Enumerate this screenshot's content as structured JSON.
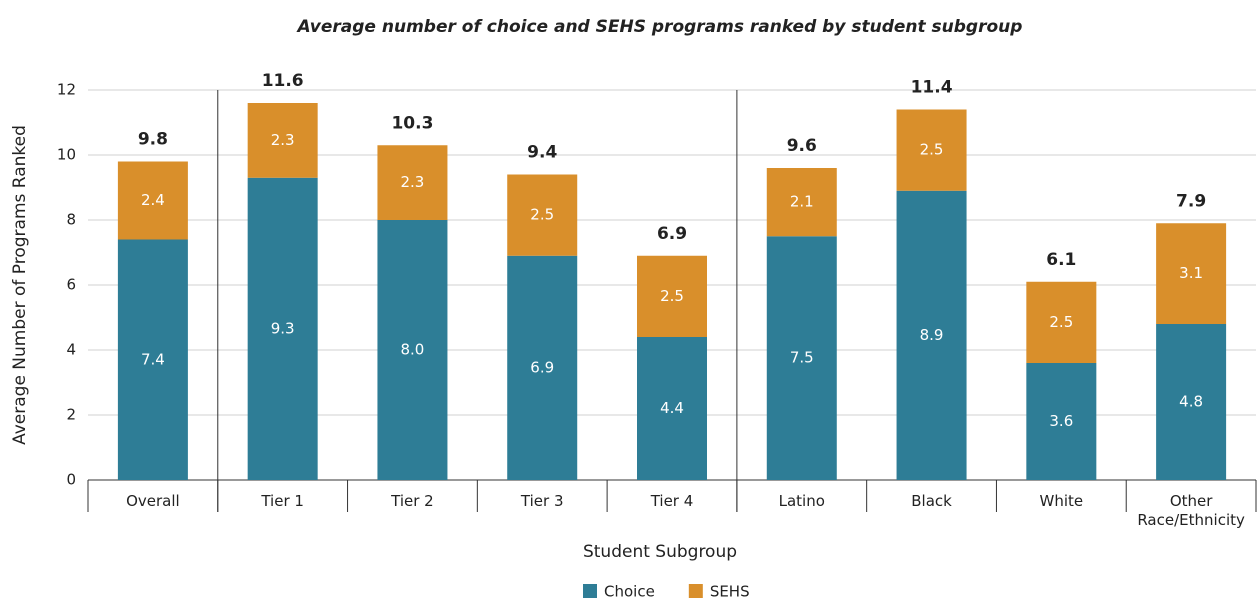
{
  "chart_data": {
    "type": "stacked_bar",
    "title": "Average number of choice and SEHS programs ranked by student subgroup",
    "x_label": "Student Subgroup",
    "y_label": "Average Number of Programs Ranked",
    "categories": [
      "Overall",
      "Tier 1",
      "Tier 2",
      "Tier 3",
      "Tier 4",
      "Latino",
      "Black",
      "White",
      "Other Race/Ethnicity"
    ],
    "series": [
      {
        "name": "Choice",
        "color": "#2e7d96",
        "values": [
          7.4,
          9.3,
          8,
          6.9,
          4.4,
          7.5,
          8.9,
          3.6,
          4.8
        ],
        "value_labels": [
          "7.4",
          "9.3",
          "8.0",
          "6.9",
          "4.4",
          "7.5",
          "8.9",
          "3.6",
          "4.8"
        ]
      },
      {
        "name": "SEHS",
        "color": "#d98f2b",
        "values": [
          2.4,
          2.3,
          2.3,
          2.5,
          2.5,
          2.1,
          2.5,
          2.5,
          3.1
        ]
      }
    ],
    "totals": [
      9.8,
      11.6,
      10.3,
      9.4,
      6.9,
      9.6,
      11.4,
      6.1,
      7.9
    ],
    "ylim": [
      0,
      12
    ],
    "yticks": [
      0,
      2,
      4,
      6,
      8,
      10,
      12
    ],
    "grid": true,
    "legend": "bottom"
  }
}
